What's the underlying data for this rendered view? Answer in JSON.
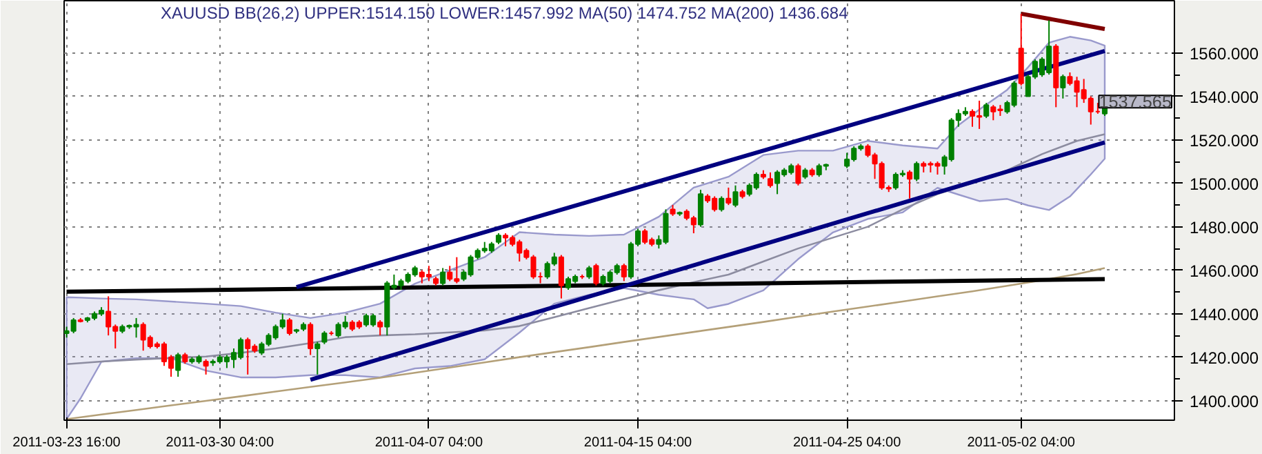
{
  "chart_data": {
    "type": "candlestick",
    "title": "XAUUSD BB(26,2) UPPER:1514.150 LOWER:1457.992 MA(50) 1474.752 MA(200) 1436.684",
    "categories": [
      "2011-03-23 16:00",
      null,
      null,
      null,
      null,
      null,
      null,
      null,
      null,
      null,
      null,
      null,
      null,
      null,
      null,
      null,
      null,
      null,
      null,
      null,
      null,
      null,
      "2011-03-30 04:00",
      null,
      null,
      null,
      null,
      null,
      null,
      null,
      null,
      null,
      null,
      null,
      null,
      null,
      null,
      null,
      null,
      null,
      null,
      null,
      null,
      null,
      null,
      null,
      null,
      null,
      null,
      null,
      null,
      null,
      "2011-04-07 04:00",
      null,
      null,
      null,
      null,
      null,
      null,
      null,
      null,
      null,
      null,
      null,
      null,
      null,
      null,
      null,
      null,
      null,
      null,
      null,
      null,
      null,
      null,
      null,
      null,
      null,
      null,
      null,
      null,
      null,
      "2011-04-15 04:00",
      null,
      null,
      null,
      null,
      null,
      null,
      null,
      null,
      null,
      null,
      null,
      null,
      null,
      null,
      null,
      null,
      null,
      null,
      null,
      null,
      null,
      null,
      null,
      null,
      null,
      null,
      null,
      null,
      null,
      "2011-04-25 04:00",
      null,
      null,
      null,
      null,
      null,
      null,
      null,
      null,
      null,
      null,
      null,
      null,
      null,
      null,
      null,
      null,
      null,
      null,
      null,
      null,
      null,
      null,
      null,
      null,
      "2011-05-02 04:00",
      null,
      null,
      null,
      null,
      null,
      null,
      null,
      null,
      null,
      null,
      null,
      null
    ],
    "ohlc": [
      [
        1431,
        1434,
        1429,
        1432
      ],
      [
        1432,
        1438,
        1431,
        1437
      ],
      [
        1437,
        1438,
        1436,
        1436.5
      ],
      [
        1437,
        1438.5,
        1436,
        1438
      ],
      [
        1438,
        1441,
        1437,
        1440
      ],
      [
        1440,
        1443,
        1439,
        1441.5
      ],
      [
        1441,
        1448,
        1430,
        1434
      ],
      [
        1434,
        1435,
        1424,
        1432
      ],
      [
        1432,
        1435,
        1431,
        1434
      ],
      [
        1434,
        1435,
        1433,
        1434.5
      ],
      [
        1434,
        1438,
        1429,
        1435
      ],
      [
        1435,
        1436,
        1423,
        1428
      ],
      [
        1429,
        1430,
        1424,
        1425
      ],
      [
        1426,
        1427,
        1424,
        1425
      ],
      [
        1426,
        1427,
        1416,
        1418
      ],
      [
        1420,
        1421,
        1411,
        1415
      ],
      [
        1414,
        1422,
        1411,
        1421
      ],
      [
        1421,
        1422,
        1417,
        1418
      ],
      [
        1418,
        1420,
        1417,
        1419
      ],
      [
        1418,
        1421,
        1417,
        1420
      ],
      [
        1418,
        1419,
        1412,
        1416
      ],
      [
        1417.5,
        1419,
        1416,
        1418
      ],
      [
        1418,
        1421,
        1417,
        1420
      ],
      [
        1418,
        1421,
        1415,
        1420
      ],
      [
        1419,
        1424,
        1415,
        1422
      ],
      [
        1420,
        1429,
        1419,
        1428
      ],
      [
        1428,
        1429,
        1412,
        1424
      ],
      [
        1425,
        1426,
        1422,
        1423
      ],
      [
        1422,
        1427,
        1421,
        1426
      ],
      [
        1426,
        1431,
        1425,
        1430
      ],
      [
        1429,
        1435,
        1428,
        1434
      ],
      [
        1434,
        1440,
        1433,
        1437
      ],
      [
        1437,
        1438,
        1430,
        1431
      ],
      [
        1432,
        1433,
        1431,
        1432.5
      ],
      [
        1433,
        1436,
        1432,
        1435
      ],
      [
        1435,
        1436,
        1421,
        1424
      ],
      [
        1424,
        1427,
        1412,
        1426
      ],
      [
        1427,
        1432,
        1426,
        1431
      ],
      [
        1431,
        1432,
        1430,
        1431
      ],
      [
        1430,
        1436,
        1429,
        1435
      ],
      [
        1434,
        1439,
        1433,
        1436
      ],
      [
        1436,
        1437,
        1432,
        1433
      ],
      [
        1436,
        1437,
        1433,
        1434
      ],
      [
        1435,
        1440,
        1434,
        1439
      ],
      [
        1435,
        1440,
        1434,
        1439
      ],
      [
        1436,
        1437,
        1430,
        1434
      ],
      [
        1434,
        1455,
        1430,
        1454
      ],
      [
        1452,
        1458,
        1451,
        1453
      ],
      [
        1453,
        1456,
        1451,
        1455
      ],
      [
        1455,
        1459,
        1454,
        1458
      ],
      [
        1458,
        1462,
        1457,
        1461
      ],
      [
        1459,
        1460,
        1454,
        1457
      ],
      [
        1458,
        1462,
        1455,
        1457
      ],
      [
        1456,
        1457,
        1453,
        1454
      ],
      [
        1454,
        1461,
        1453,
        1459
      ],
      [
        1459,
        1462,
        1455,
        1456
      ],
      [
        1456,
        1466,
        1454,
        1455
      ],
      [
        1456,
        1460,
        1455,
        1459
      ],
      [
        1458,
        1467,
        1457,
        1466
      ],
      [
        1466,
        1470,
        1465,
        1469
      ],
      [
        1469,
        1473,
        1468,
        1470
      ],
      [
        1469,
        1473,
        1468,
        1472
      ],
      [
        1473,
        1477,
        1472,
        1476
      ],
      [
        1476,
        1477,
        1471,
        1475
      ],
      [
        1475,
        1476,
        1471,
        1472
      ],
      [
        1473,
        1474,
        1464,
        1468
      ],
      [
        1469,
        1470,
        1465,
        1466
      ],
      [
        1466,
        1467,
        1456,
        1457
      ],
      [
        1457,
        1459,
        1454,
        1457
      ],
      [
        1457,
        1464,
        1456,
        1463
      ],
      [
        1463,
        1468,
        1462,
        1466
      ],
      [
        1466,
        1467,
        1447,
        1453
      ],
      [
        1452,
        1457,
        1451,
        1456
      ],
      [
        1455,
        1458,
        1454,
        1457
      ],
      [
        1457,
        1458,
        1456,
        1457
      ],
      [
        1457,
        1462,
        1456,
        1461
      ],
      [
        1462,
        1463,
        1453,
        1454
      ],
      [
        1454,
        1458,
        1453,
        1457
      ],
      [
        1455,
        1460,
        1454,
        1459
      ],
      [
        1459,
        1463,
        1458,
        1462
      ],
      [
        1462,
        1463,
        1455,
        1457
      ],
      [
        1457,
        1473,
        1456,
        1472
      ],
      [
        1472,
        1479,
        1471,
        1478
      ],
      [
        1478,
        1479,
        1472,
        1473
      ],
      [
        1474,
        1475,
        1471,
        1472
      ],
      [
        1472,
        1476,
        1470,
        1474
      ],
      [
        1473,
        1488,
        1472,
        1486
      ],
      [
        1488,
        1490,
        1485,
        1486
      ],
      [
        1486,
        1487,
        1485,
        1486.5
      ],
      [
        1487,
        1488,
        1483,
        1484
      ],
      [
        1484,
        1485,
        1477,
        1481
      ],
      [
        1481,
        1497,
        1480,
        1495
      ],
      [
        1494,
        1495,
        1491,
        1492
      ],
      [
        1493,
        1494,
        1487,
        1488
      ],
      [
        1488,
        1494,
        1487,
        1493
      ],
      [
        1493,
        1498,
        1490,
        1491
      ],
      [
        1490,
        1499,
        1489,
        1496
      ],
      [
        1496,
        1497,
        1493,
        1494
      ],
      [
        1495,
        1500,
        1494,
        1499
      ],
      [
        1498,
        1505,
        1497,
        1504
      ],
      [
        1504,
        1506,
        1502,
        1503
      ],
      [
        1502,
        1505,
        1498,
        1499
      ],
      [
        1500,
        1506,
        1495,
        1505
      ],
      [
        1504,
        1507,
        1503,
        1506
      ],
      [
        1505,
        1509,
        1504,
        1508
      ],
      [
        1508,
        1509,
        1499,
        1500
      ],
      [
        1503,
        1507,
        1502,
        1506
      ],
      [
        1506,
        1507,
        1503,
        1504
      ],
      [
        1504,
        1509,
        1503,
        1508
      ],
      [
        1508,
        1509,
        1506,
        1508.5
      ],
      null,
      null,
      [
        1508,
        1514,
        1507,
        1511
      ],
      [
        1511,
        1517,
        1510,
        1516
      ],
      [
        1516,
        1518,
        1515,
        1517
      ],
      [
        1517,
        1518,
        1512,
        1513
      ],
      [
        1513,
        1514,
        1502,
        1509
      ],
      [
        1509,
        1510,
        1497,
        1498
      ],
      [
        1498,
        1499,
        1496,
        1497.5
      ],
      [
        1498,
        1505,
        1497,
        1504
      ],
      [
        1504,
        1506,
        1503,
        1504.5
      ],
      [
        1505,
        1506,
        1493,
        1502
      ],
      [
        1502,
        1510,
        1501,
        1509
      ],
      [
        1509,
        1510,
        1505,
        1508
      ],
      [
        1509,
        1510,
        1505,
        1508.5
      ],
      [
        1509,
        1510,
        1504,
        1508
      ],
      [
        1508,
        1513,
        1504,
        1512
      ],
      [
        1511,
        1530,
        1510,
        1529
      ],
      [
        1529,
        1534,
        1526,
        1532
      ],
      [
        1532,
        1535,
        1531,
        1533
      ],
      [
        1533,
        1534,
        1526,
        1531
      ],
      [
        1531,
        1538,
        1525,
        1530.5
      ],
      [
        1531,
        1537,
        1530,
        1536
      ],
      [
        1535,
        1536,
        1529,
        1533
      ],
      [
        1534,
        1536,
        1531,
        1533.5
      ],
      [
        1533,
        1538,
        1532,
        1537
      ],
      [
        1536,
        1547,
        1535,
        1546
      ],
      [
        1562,
        1578,
        1545,
        1546
      ],
      [
        1540,
        1550,
        1540,
        1549
      ],
      [
        1549,
        1557,
        1548,
        1556
      ],
      [
        1550,
        1558,
        1549,
        1557
      ],
      [
        1551,
        1575,
        1550,
        1563
      ],
      [
        1563,
        1564,
        1535,
        1544
      ],
      [
        1544,
        1550,
        1539,
        1549
      ],
      [
        1549,
        1551,
        1545,
        1546
      ],
      [
        1547,
        1549,
        1535,
        1542
      ],
      [
        1543,
        1548,
        1537,
        1539
      ],
      [
        1539,
        1540,
        1527,
        1533
      ],
      [
        1533,
        1537,
        1532,
        1533
      ],
      [
        1532,
        1538,
        1531,
        1537.565
      ]
    ],
    "colors": [
      "#008000",
      "#008000",
      "#ff0000",
      "#008000",
      "#008000",
      "#008000",
      "#ff0000",
      "#ff0000",
      "#008000",
      "#008000",
      "#008000",
      "#ff0000",
      "#ff0000",
      "#ff0000",
      "#ff0000",
      "#ff0000",
      "#008000",
      "#ff0000",
      "#008000",
      "#008000",
      "#ff0000",
      "#008000",
      "#008000",
      "#008000",
      "#008000",
      "#008000",
      "#ff0000",
      "#ff0000",
      "#008000",
      "#008000",
      "#008000",
      "#008000",
      "#ff0000",
      "#008000",
      "#008000",
      "#ff0000",
      "#008000",
      "#008000",
      "#ff0000",
      "#008000",
      "#008000",
      "#ff0000",
      "#ff0000",
      "#008000",
      "#008000",
      "#ff0000",
      "#008000",
      "#008000",
      "#008000",
      "#008000",
      "#008000",
      "#ff0000",
      "#ff0000",
      "#ff0000",
      "#008000",
      "#ff0000",
      "#ff0000",
      "#008000",
      "#008000",
      "#008000",
      "#008000",
      "#008000",
      "#008000",
      "#ff0000",
      "#ff0000",
      "#ff0000",
      "#ff0000",
      "#ff0000",
      "#ff0000",
      "#008000",
      "#008000",
      "#ff0000",
      "#008000",
      "#008000",
      "#ff0000",
      "#008000",
      "#ff0000",
      "#008000",
      "#008000",
      "#008000",
      "#ff0000",
      "#008000",
      "#008000",
      "#ff0000",
      "#ff0000",
      "#008000",
      "#008000",
      "#ff0000",
      "#008000",
      "#ff0000",
      "#ff0000",
      "#008000",
      "#ff0000",
      "#ff0000",
      "#008000",
      "#ff0000",
      "#008000",
      "#ff0000",
      "#008000",
      "#008000",
      "#ff0000",
      "#ff0000",
      "#008000",
      "#008000",
      "#008000",
      "#ff0000",
      "#008000",
      "#ff0000",
      "#008000",
      "#008000",
      null,
      null,
      "#008000",
      "#008000",
      "#008000",
      "#ff0000",
      "#ff0000",
      "#ff0000",
      "#ff0000",
      "#008000",
      "#008000",
      "#ff0000",
      "#008000",
      "#ff0000",
      "#ff0000",
      "#ff0000",
      "#008000",
      "#008000",
      "#008000",
      "#008000",
      "#ff0000",
      "#ff0000",
      "#008000",
      "#ff0000",
      "#ff0000",
      "#008000",
      "#008000",
      "#ff0000",
      "#008000",
      "#008000",
      "#008000",
      "#008000",
      "#ff0000",
      "#008000",
      "#ff0000",
      "#ff0000",
      "#ff0000",
      "#ff0000",
      "#ff0000",
      "#008000"
    ],
    "series": [
      {
        "type": "area",
        "color": "#9999cc",
        "values": [
          null,
          null,
          null,
          null,
          null,
          null,
          null,
          null,
          null,
          null,
          null,
          null,
          null,
          null,
          null,
          null,
          null,
          null,
          null,
          null,
          null,
          null,
          null,
          null,
          null,
          null,
          null,
          null,
          null,
          null,
          null,
          null,
          null,
          null,
          null,
          null,
          null,
          null,
          null,
          null,
          null,
          null,
          null,
          null,
          null,
          null,
          null,
          null,
          null,
          null,
          null,
          null,
          null,
          null,
          null,
          null,
          null,
          null,
          null,
          null,
          null,
          null,
          null,
          null,
          null,
          null,
          null,
          null,
          null,
          null,
          null,
          null,
          null,
          null,
          null,
          null,
          null,
          null,
          null,
          null,
          null,
          null,
          null,
          null,
          null,
          null,
          null,
          null,
          null,
          null,
          null,
          null,
          null,
          null,
          null,
          null,
          null,
          null,
          null,
          null,
          null,
          null,
          null,
          null,
          null,
          null,
          null,
          null,
          null,
          null,
          null,
          null,
          null,
          null,
          null,
          null,
          null,
          null,
          null,
          null,
          null,
          null,
          null,
          null,
          null,
          null,
          null,
          null,
          null,
          null,
          null,
          null,
          null,
          null,
          null,
          null,
          null,
          null,
          null,
          null,
          null,
          null,
          null,
          null,
          null,
          null,
          null,
          null,
          null,
          null
        ],
        "lower": [
          1391.5,
          null,
          1401,
          null,
          null,
          1417.9,
          null,
          null,
          null,
          null,
          1419.5,
          null,
          null,
          null,
          null,
          1419.5,
          null,
          null,
          null,
          null,
          1413.8,
          null,
          null,
          null,
          null,
          1410.7,
          null,
          null,
          null,
          null,
          1410.7,
          null,
          null,
          null,
          null,
          1411.7,
          null,
          null,
          null,
          null,
          1411.7,
          null,
          null,
          null,
          null,
          1410.7,
          null,
          null,
          null,
          null,
          1414.8,
          null,
          null,
          null,
          null,
          1415.9,
          null,
          null,
          null,
          null,
          1419,
          null,
          null,
          null,
          null,
          1431.3,
          null,
          null,
          null,
          null,
          1444.6,
          null,
          null,
          null,
          null,
          1448.7,
          null,
          null,
          null,
          null,
          1451.8,
          null,
          null,
          null,
          null,
          1448.7,
          null,
          null,
          null,
          null,
          1446.6,
          null,
          1442.5,
          null,
          null,
          1444.5,
          null,
          null,
          null,
          null,
          1450.7,
          null,
          null,
          null,
          null,
          1465.1,
          null,
          null,
          null,
          null,
          1477.4,
          null,
          null,
          null,
          null,
          1483.6,
          null,
          null,
          null,
          null,
          1486.6,
          null,
          null,
          null,
          null,
          1497.9,
          null,
          null,
          1494.8,
          null,
          null,
          1491.8,
          null,
          null,
          null,
          1492.8,
          null,
          null,
          1489.8,
          null,
          null,
          1487.7,
          null,
          null,
          1493.9,
          null,
          null,
          1504.1,
          null,
          1511.3
        ],
        "upper": [
          1447.6,
          null,
          1447.4,
          null,
          null,
          1447,
          null,
          null,
          null,
          null,
          1446.6,
          null,
          null,
          null,
          null,
          1445.6,
          null,
          null,
          null,
          null,
          1444.6,
          null,
          null,
          null,
          null,
          1443.5,
          null,
          null,
          null,
          null,
          1440.5,
          null,
          null,
          null,
          null,
          1438,
          null,
          null,
          null,
          null,
          1440.5,
          null,
          null,
          null,
          null,
          1444.6,
          null,
          null,
          null,
          null,
          1453.8,
          null,
          null,
          null,
          null,
          1460,
          null,
          null,
          null,
          null,
          1466,
          null,
          null,
          null,
          null,
          1477.5,
          null,
          null,
          null,
          null,
          1476.4,
          null,
          null,
          null,
          null,
          1475.8,
          null,
          null,
          null,
          null,
          1476.4,
          null,
          null,
          null,
          null,
          1484.6,
          null,
          null,
          null,
          null,
          1498,
          null,
          1500,
          null,
          null,
          1503,
          null,
          null,
          null,
          null,
          1513,
          null,
          null,
          null,
          null,
          1515,
          null,
          null,
          null,
          null,
          1515,
          null,
          null,
          null,
          null,
          1519.5,
          null,
          null,
          null,
          null,
          1517.4,
          null,
          null,
          null,
          null,
          1516,
          null,
          null,
          1526.7,
          null,
          null,
          1533.9,
          null,
          null,
          null,
          1543,
          null,
          null,
          1553.4,
          null,
          null,
          1564.7,
          null,
          null,
          1567.4,
          null,
          null,
          1565.7,
          null,
          1563.3
        ]
      },
      {
        "type": "line",
        "color": "#8c8ca0",
        "values": [
          1416.8,
          null,
          null,
          null,
          null,
          1418,
          null,
          null,
          null,
          null,
          1418.9,
          null,
          null,
          null,
          null,
          1419.6,
          null,
          null,
          null,
          null,
          1420.3,
          null,
          null,
          null,
          null,
          1422,
          null,
          null,
          null,
          null,
          1424,
          null,
          null,
          null,
          null,
          1426.5,
          null,
          null,
          null,
          null,
          1429.2,
          null,
          null,
          null,
          null,
          1430,
          null,
          null,
          null,
          null,
          1430.5,
          null,
          null,
          null,
          null,
          1431.4,
          null,
          null,
          null,
          null,
          1432.3,
          null,
          null,
          null,
          null,
          1434.3,
          null,
          null,
          null,
          null,
          1438.4,
          null,
          null,
          null,
          null,
          1442.6,
          null,
          null,
          null,
          null,
          1446.7,
          null,
          null,
          null,
          null,
          1450.8,
          null,
          null,
          null,
          null,
          1454.5,
          null,
          null,
          null,
          null,
          1458,
          null,
          null,
          null,
          null,
          1464,
          null,
          null,
          null,
          null,
          1470,
          null,
          null,
          null,
          null,
          1475,
          null,
          null,
          null,
          null,
          1480,
          null,
          null,
          null,
          null,
          1488,
          null,
          null,
          null,
          null,
          1495,
          null,
          null,
          null,
          null,
          1500,
          null,
          null,
          null,
          null,
          1506,
          null,
          null,
          null,
          null,
          1513.4,
          null,
          null,
          null,
          null,
          1519.5,
          null,
          null,
          null,
          1522.6
        ]
      },
      {
        "type": "line",
        "color": "#b4a078",
        "values": [
          1391.5,
          null,
          null,
          null,
          null,
          1393.6,
          null,
          null,
          null,
          null,
          1395.7,
          null,
          null,
          null,
          null,
          1397.8,
          null,
          null,
          null,
          null,
          1399.9,
          null,
          null,
          null,
          null,
          1402,
          null,
          null,
          null,
          null,
          1404.2,
          null,
          null,
          null,
          null,
          1406.3,
          null,
          null,
          null,
          null,
          1408.4,
          null,
          null,
          null,
          null,
          1410.5,
          null,
          null,
          null,
          null,
          1412.8,
          null,
          null,
          null,
          null,
          1415.2,
          null,
          null,
          null,
          null,
          1417.6,
          null,
          null,
          null,
          null,
          1420,
          null,
          null,
          null,
          null,
          1422.3,
          null,
          null,
          null,
          null,
          1424.6,
          null,
          null,
          null,
          null,
          1427,
          null,
          null,
          null,
          null,
          1429.3,
          null,
          null,
          null,
          null,
          1431.6,
          null,
          null,
          null,
          null,
          1433.9,
          null,
          null,
          null,
          null,
          1436.2,
          null,
          null,
          null,
          null,
          1438.6,
          null,
          null,
          null,
          null,
          1441,
          null,
          null,
          null,
          null,
          1443.3,
          null,
          null,
          null,
          null,
          1445.6,
          null,
          null,
          null,
          null,
          1448,
          null,
          null,
          null,
          null,
          1450.3,
          null,
          null,
          null,
          null,
          1452.8,
          null,
          null,
          null,
          null,
          1455.4,
          null,
          null,
          null,
          null,
          1458.2,
          null,
          null,
          null,
          1461
        ]
      },
      {
        "type": "line",
        "color": "#000000",
        "values": [
          1450.1,
          null,
          null,
          null,
          null,
          null,
          null,
          null,
          null,
          null,
          null,
          null,
          null,
          null,
          null,
          null,
          null,
          null,
          null,
          null,
          null,
          null,
          null,
          null,
          null,
          null,
          null,
          null,
          null,
          null,
          null,
          null,
          null,
          null,
          null,
          null,
          null,
          null,
          null,
          null,
          null,
          null,
          null,
          null,
          null,
          null,
          null,
          null,
          null,
          null,
          null,
          null,
          null,
          null,
          null,
          null,
          null,
          null,
          null,
          null,
          null,
          null,
          null,
          null,
          null,
          null,
          null,
          null,
          null,
          null,
          null,
          null,
          null,
          null,
          null,
          null,
          null,
          null,
          null,
          null,
          null,
          null,
          null,
          null,
          null,
          null,
          null,
          null,
          null,
          null,
          null,
          null,
          null,
          null,
          null,
          null,
          null,
          null,
          null,
          null,
          null,
          null,
          null,
          null,
          null,
          null,
          null,
          null,
          null,
          null,
          null,
          null,
          null,
          null,
          null,
          null,
          null,
          null,
          null,
          null,
          null,
          null,
          null,
          null,
          null,
          null,
          null,
          null,
          null,
          null,
          null,
          null,
          null,
          null,
          null,
          null,
          null,
          null,
          null,
          null,
          null,
          null,
          null,
          null,
          null,
          null,
          null,
          null,
          null,
          1455.9
        ]
      },
      {
        "type": "line",
        "color": "#000080",
        "values": [
          null,
          null,
          null,
          null,
          null,
          null,
          null,
          null,
          null,
          null,
          null,
          null,
          null,
          null,
          null,
          null,
          null,
          null,
          null,
          null,
          null,
          null,
          null,
          null,
          null,
          null,
          null,
          null,
          null,
          null,
          null,
          null,
          null,
          1452.2,
          null,
          null,
          null,
          null,
          null,
          null,
          null,
          null,
          null,
          null,
          null,
          null,
          null,
          null,
          null,
          null,
          null,
          null,
          null,
          null,
          null,
          null,
          null,
          null,
          null,
          null,
          null,
          null,
          null,
          null,
          null,
          null,
          null,
          null,
          null,
          null,
          null,
          null,
          null,
          null,
          null,
          null,
          null,
          null,
          null,
          null,
          null,
          null,
          null,
          null,
          null,
          null,
          null,
          null,
          null,
          null,
          null,
          null,
          null,
          null,
          null,
          null,
          null,
          null,
          null,
          null,
          null,
          null,
          null,
          null,
          null,
          null,
          null,
          null,
          null,
          null,
          null,
          null,
          null,
          null,
          null,
          null,
          null,
          null,
          null,
          null,
          null,
          null,
          null,
          null,
          null,
          null,
          null,
          null,
          null,
          null,
          null,
          null,
          null,
          null,
          null,
          null,
          null,
          null,
          null,
          null,
          null,
          null,
          null,
          null,
          null,
          null,
          null,
          null,
          null,
          1560.9
        ]
      },
      {
        "type": "line",
        "color": "#000080",
        "values": [
          null,
          null,
          null,
          null,
          null,
          null,
          null,
          null,
          null,
          null,
          null,
          null,
          null,
          null,
          null,
          null,
          null,
          null,
          null,
          null,
          null,
          null,
          null,
          null,
          null,
          null,
          null,
          null,
          null,
          null,
          null,
          null,
          null,
          null,
          null,
          1409.6,
          null,
          null,
          null,
          null,
          null,
          null,
          null,
          null,
          null,
          null,
          null,
          null,
          null,
          null,
          null,
          null,
          null,
          null,
          null,
          null,
          null,
          null,
          null,
          null,
          null,
          null,
          null,
          null,
          null,
          null,
          null,
          null,
          null,
          null,
          null,
          null,
          null,
          null,
          null,
          null,
          null,
          null,
          null,
          null,
          null,
          null,
          null,
          null,
          null,
          null,
          null,
          null,
          null,
          null,
          null,
          null,
          null,
          null,
          null,
          null,
          null,
          null,
          null,
          null,
          null,
          null,
          null,
          null,
          null,
          null,
          null,
          null,
          null,
          null,
          null,
          null,
          null,
          null,
          null,
          null,
          null,
          null,
          null,
          null,
          null,
          null,
          null,
          null,
          null,
          null,
          null,
          null,
          null,
          null,
          null,
          null,
          null,
          null,
          null,
          null,
          null,
          null,
          null,
          null,
          null,
          null,
          null,
          null,
          null,
          null,
          null,
          null,
          null,
          1518.8
        ]
      },
      {
        "type": "line",
        "color": "#800000",
        "values": [
          null,
          null,
          null,
          null,
          null,
          null,
          null,
          null,
          null,
          null,
          null,
          null,
          null,
          null,
          null,
          null,
          null,
          null,
          null,
          null,
          null,
          null,
          null,
          null,
          null,
          null,
          null,
          null,
          null,
          null,
          null,
          null,
          null,
          null,
          null,
          null,
          null,
          null,
          null,
          null,
          null,
          null,
          null,
          null,
          null,
          null,
          null,
          null,
          null,
          null,
          null,
          null,
          null,
          null,
          null,
          null,
          null,
          null,
          null,
          null,
          null,
          null,
          null,
          null,
          null,
          null,
          null,
          null,
          null,
          null,
          null,
          null,
          null,
          null,
          null,
          null,
          null,
          null,
          null,
          null,
          null,
          null,
          null,
          null,
          null,
          null,
          null,
          null,
          null,
          null,
          null,
          null,
          null,
          null,
          null,
          null,
          null,
          null,
          null,
          null,
          null,
          null,
          null,
          null,
          null,
          null,
          null,
          null,
          null,
          null,
          null,
          null,
          null,
          null,
          null,
          null,
          null,
          null,
          null,
          null,
          null,
          null,
          null,
          null,
          null,
          null,
          null,
          null,
          null,
          null,
          null,
          null,
          null,
          null,
          null,
          null,
          null,
          1578,
          null,
          null,
          null,
          null,
          null,
          null,
          null,
          null,
          null,
          null,
          null,
          1571
        ]
      }
    ],
    "ylim": [
      1391,
      1584
    ],
    "yticks": [
      {
        "value": 1400,
        "label": "1400.000"
      },
      {
        "value": 1420,
        "label": "1420.000"
      },
      {
        "value": 1440,
        "label": "1440.000"
      },
      {
        "value": 1460,
        "label": "1460.000"
      },
      {
        "value": 1480,
        "label": "1480.000"
      },
      {
        "value": 1500,
        "label": "1500.000"
      },
      {
        "value": 1520,
        "label": "1520.000"
      },
      {
        "value": 1540,
        "label": "1540.000"
      },
      {
        "value": 1560,
        "label": "1560.000"
      }
    ],
    "annotations": [
      "1537.565"
    ],
    "grid": true
  }
}
